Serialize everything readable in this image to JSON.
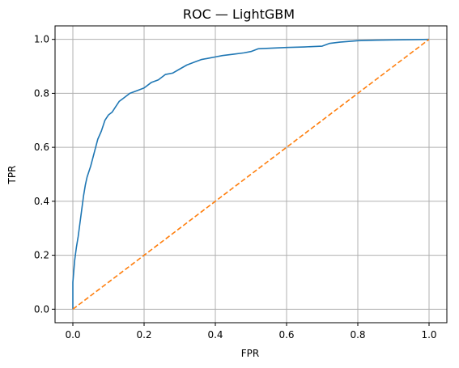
{
  "chart_data": {
    "type": "line",
    "title": "ROC — LightGBM",
    "xlabel": "FPR",
    "ylabel": "TPR",
    "xlim": [
      -0.05,
      1.05
    ],
    "ylim": [
      -0.05,
      1.05
    ],
    "xticks": [
      0.0,
      0.2,
      0.4,
      0.6,
      0.8,
      1.0
    ],
    "yticks": [
      0.0,
      0.2,
      0.4,
      0.6,
      0.8,
      1.0
    ],
    "xtick_labels": [
      "0.0",
      "0.2",
      "0.4",
      "0.6",
      "0.8",
      "1.0"
    ],
    "ytick_labels": [
      "0.0",
      "0.2",
      "0.4",
      "0.6",
      "0.8",
      "1.0"
    ],
    "grid": true,
    "series": [
      {
        "color": "#1f77b4",
        "style": "solid",
        "x": [
          0.0,
          0.0,
          0.005,
          0.01,
          0.015,
          0.02,
          0.025,
          0.03,
          0.035,
          0.04,
          0.045,
          0.05,
          0.06,
          0.07,
          0.08,
          0.09,
          0.1,
          0.11,
          0.12,
          0.13,
          0.14,
          0.15,
          0.16,
          0.17,
          0.18,
          0.2,
          0.22,
          0.24,
          0.26,
          0.28,
          0.3,
          0.32,
          0.34,
          0.36,
          0.38,
          0.4,
          0.42,
          0.45,
          0.48,
          0.5,
          0.52,
          0.55,
          0.6,
          0.65,
          0.7,
          0.72,
          0.75,
          0.8,
          0.85,
          0.9,
          0.95,
          1.0
        ],
        "y": [
          0.0,
          0.1,
          0.18,
          0.23,
          0.27,
          0.32,
          0.37,
          0.42,
          0.46,
          0.49,
          0.51,
          0.53,
          0.58,
          0.63,
          0.66,
          0.7,
          0.72,
          0.73,
          0.75,
          0.77,
          0.78,
          0.79,
          0.8,
          0.805,
          0.81,
          0.82,
          0.84,
          0.85,
          0.87,
          0.875,
          0.89,
          0.905,
          0.915,
          0.925,
          0.93,
          0.935,
          0.94,
          0.945,
          0.95,
          0.955,
          0.965,
          0.967,
          0.97,
          0.972,
          0.975,
          0.985,
          0.99,
          0.995,
          0.997,
          0.998,
          0.999,
          1.0
        ]
      },
      {
        "color": "#ff7f0e",
        "style": "dashed",
        "x": [
          0.0,
          1.0
        ],
        "y": [
          0.0,
          1.0
        ]
      }
    ]
  }
}
